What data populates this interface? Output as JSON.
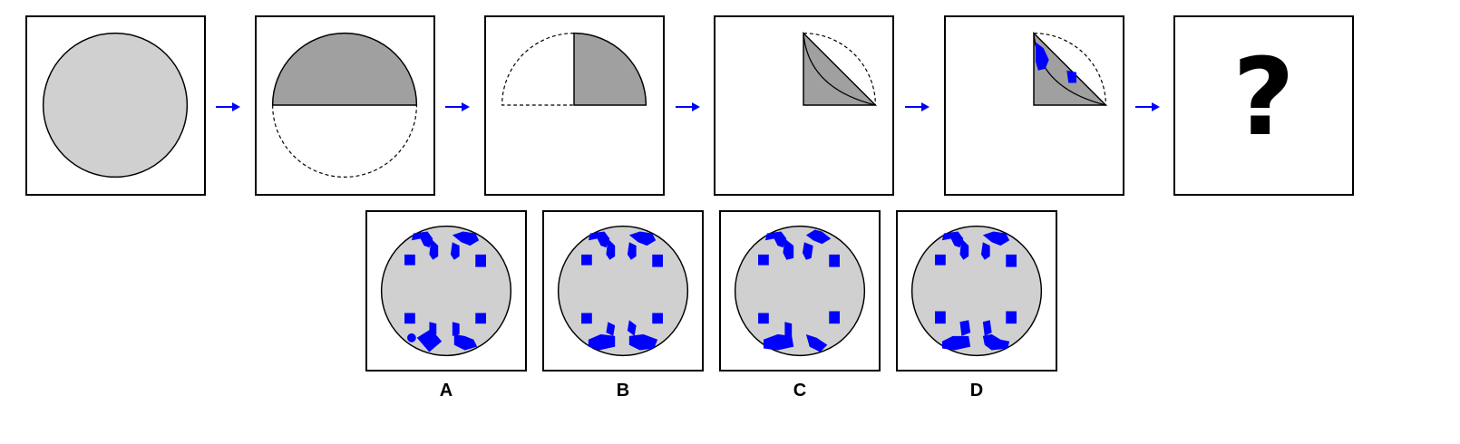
{
  "colors": {
    "light_gray": "#d0d0d0",
    "dark_gray": "#a0a0a0",
    "blue": "#0000ff",
    "stroke": "#000000"
  },
  "sequence": {
    "steps": [
      {
        "id": "step-1",
        "shows": "full-circle"
      },
      {
        "id": "step-2",
        "shows": "folded-half"
      },
      {
        "id": "step-3",
        "shows": "folded-quarter"
      },
      {
        "id": "step-4",
        "shows": "folded-eighth"
      },
      {
        "id": "step-5",
        "shows": "folded-eighth-with-cuts"
      }
    ],
    "unknown_mark": "?"
  },
  "options": [
    {
      "label": "A"
    },
    {
      "label": "B"
    },
    {
      "label": "C"
    },
    {
      "label": "D"
    }
  ]
}
